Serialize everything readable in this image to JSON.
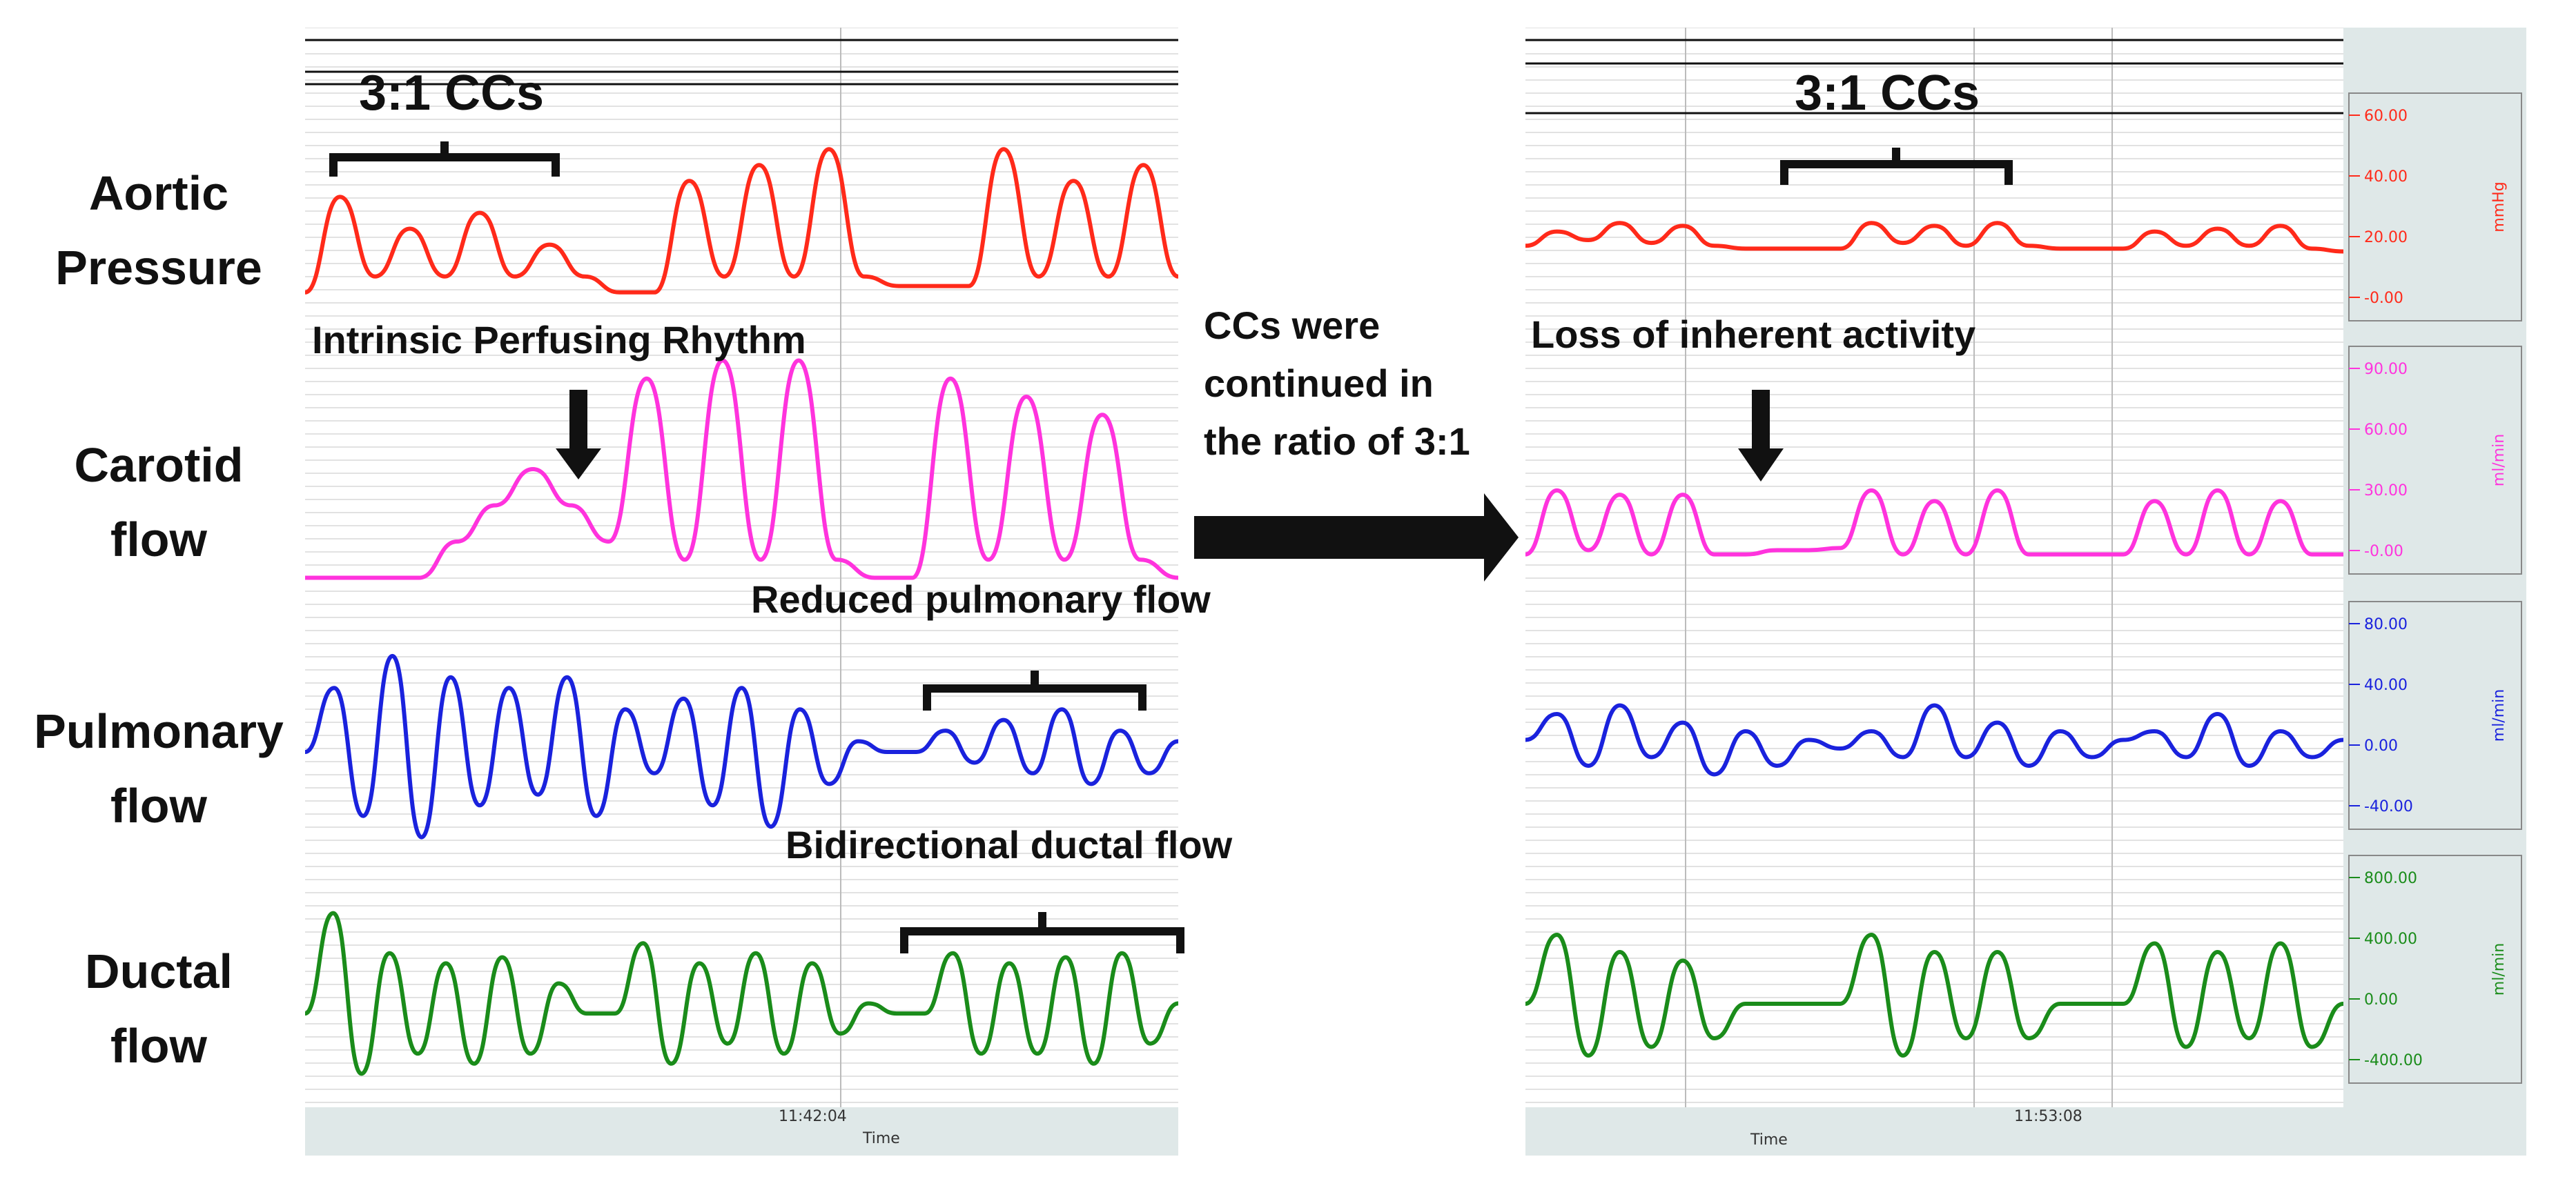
{
  "labels": {
    "aortic_line1": "Aortic",
    "aortic_line2": "Pressure",
    "carotid_line1": "Carotid",
    "carotid_line2": "flow",
    "pulmonary_line1": "Pulmonary",
    "pulmonary_line2": "flow",
    "ductal_line1": "Ductal",
    "ductal_line2": "flow"
  },
  "annotations": {
    "cc_left": "3:1 CCs",
    "cc_right": "3:1 CCs",
    "intrinsic": "Intrinsic Perfusing Rhythm",
    "loss": "Loss of inherent activity",
    "reduced_pulmonary": "Reduced pulmonary flow",
    "bidirectional": "Bidirectional ductal flow",
    "middle_line1": "CCs were",
    "middle_line2": "continued in",
    "middle_line3": "the ratio of 3:1"
  },
  "time_axis": {
    "left_time": "11:42:04",
    "right_time": "11:53:08",
    "label": "Time"
  },
  "colors": {
    "aortic": "#ff2a1a",
    "carotid": "#ff33dd",
    "pulmonary": "#1a22dd",
    "ductal": "#1a8c1a",
    "time_bar": "#dfe8e8",
    "axis_panel": "#dfe8e8"
  },
  "chart_data": [
    {
      "type": "line",
      "title": "",
      "series": [
        {
          "name": "Aortic Pressure",
          "values": [
            0,
            30,
            5,
            20,
            5,
            25,
            5,
            15,
            5,
            0,
            0,
            35,
            5,
            40,
            5,
            45,
            5,
            2,
            2,
            2,
            45,
            5,
            35,
            5,
            40,
            5
          ]
        },
        {
          "name": "Carotid flow",
          "values": [
            0,
            0,
            0,
            0,
            10,
            20,
            30,
            20,
            10,
            55,
            5,
            60,
            5,
            60,
            5,
            0,
            0,
            55,
            5,
            50,
            5,
            45,
            5,
            0
          ]
        },
        {
          "name": "Pulmonary flow",
          "values": [
            0,
            30,
            -30,
            45,
            -40,
            35,
            -25,
            30,
            -20,
            35,
            -30,
            20,
            -10,
            25,
            -25,
            30,
            -35,
            20,
            -15,
            5,
            0,
            0,
            10,
            -5,
            15,
            -10,
            20,
            -15,
            10,
            -10,
            5
          ]
        },
        {
          "name": "Ductal flow",
          "values": [
            0,
            500,
            -300,
            300,
            -200,
            250,
            -250,
            280,
            -200,
            150,
            0,
            0,
            350,
            -250,
            250,
            -150,
            300,
            -200,
            250,
            -100,
            50,
            0,
            0,
            300,
            -200,
            250,
            -200,
            280,
            -250,
            300,
            -150,
            50
          ]
        }
      ]
    },
    {
      "type": "line",
      "title": "",
      "axes": [
        {
          "unit": "mmHg",
          "ticks": [
            "60.00",
            "40.00",
            "20.00",
            "-0.00"
          ]
        },
        {
          "unit": "ml/min",
          "ticks": [
            "90.00",
            "60.00",
            "30.00",
            "-0.00"
          ]
        },
        {
          "unit": "ml/min",
          "ticks": [
            "80.00",
            "40.00",
            "0.00",
            "-40.00"
          ]
        },
        {
          "unit": "ml/min",
          "ticks": [
            "800.00",
            "400.00",
            "0.00",
            "-400.00"
          ]
        }
      ],
      "series": [
        {
          "name": "Aortic Pressure",
          "values": [
            20,
            25,
            22,
            28,
            21,
            27,
            20,
            19,
            19,
            19,
            19,
            28,
            21,
            27,
            20,
            28,
            20,
            19,
            19,
            19,
            25,
            20,
            26,
            20,
            27,
            19,
            18
          ]
        },
        {
          "name": "Carotid flow",
          "values": [
            0,
            30,
            2,
            28,
            0,
            28,
            0,
            0,
            2,
            2,
            3,
            30,
            0,
            25,
            0,
            30,
            0,
            0,
            0,
            0,
            25,
            0,
            30,
            0,
            25,
            0,
            0
          ]
        },
        {
          "name": "Pulmonary flow",
          "values": [
            5,
            20,
            -10,
            25,
            -5,
            15,
            -15,
            10,
            -10,
            5,
            0,
            10,
            -5,
            25,
            -5,
            15,
            -10,
            10,
            -5,
            5,
            10,
            -5,
            20,
            -10,
            10,
            -5,
            5
          ]
        },
        {
          "name": "Ductal flow",
          "values": [
            0,
            400,
            -300,
            300,
            -250,
            250,
            -200,
            0,
            0,
            0,
            0,
            400,
            -300,
            300,
            -200,
            300,
            -200,
            0,
            0,
            0,
            350,
            -250,
            300,
            -200,
            350,
            -250,
            0
          ]
        }
      ]
    }
  ]
}
